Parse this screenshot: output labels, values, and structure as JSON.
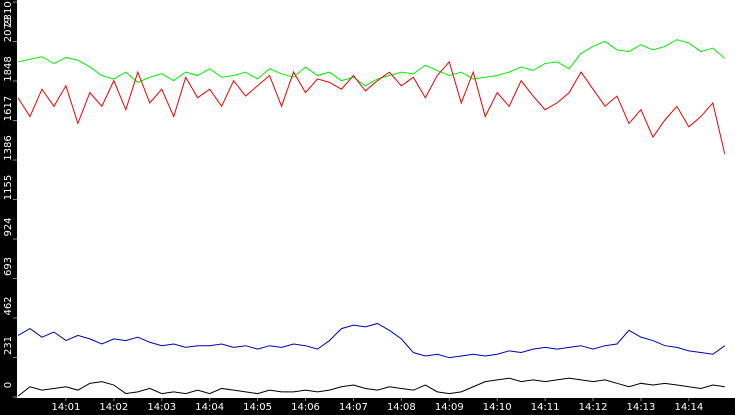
{
  "chart_data": {
    "type": "line",
    "categories": [
      null,
      null,
      null,
      null,
      "14:01",
      null,
      null,
      null,
      "14:02",
      null,
      null,
      null,
      "14:03",
      null,
      null,
      null,
      "14:04",
      null,
      null,
      null,
      "14:05",
      null,
      null,
      null,
      "14:06",
      null,
      null,
      null,
      "14:07",
      null,
      null,
      null,
      "14:08",
      null,
      null,
      null,
      "14:09",
      null,
      null,
      null,
      "14:10",
      null,
      null,
      null,
      "14:11",
      null,
      null,
      null,
      "14:12",
      null,
      null,
      null,
      "14:13",
      null,
      null,
      null,
      "14:14",
      null,
      null,
      null
    ],
    "ylim": [
      0,
      2310
    ],
    "yticks": [
      0,
      231,
      462,
      693,
      924,
      1155,
      1386,
      1617,
      1848,
      2079,
      2310
    ],
    "series": [
      {
        "color": "#00ee00",
        "values": [
          1960,
          1975,
          1990,
          1950,
          1985,
          1970,
          1930,
          1880,
          1860,
          1900,
          1840,
          1870,
          1890,
          1850,
          1900,
          1880,
          1920,
          1870,
          1880,
          1900,
          1860,
          1920,
          1890,
          1870,
          1930,
          1880,
          1900,
          1850,
          1870,
          1820,
          1860,
          1880,
          1900,
          1890,
          1940,
          1910,
          1880,
          1900,
          1860,
          1870,
          1880,
          1900,
          1930,
          1910,
          1950,
          1960,
          1920,
          2010,
          2050,
          2080,
          2030,
          2020,
          2060,
          2030,
          2050,
          2090,
          2070,
          2020,
          2040,
          1980
        ]
      },
      {
        "color": "#ee0000",
        "values": [
          1750,
          1640,
          1800,
          1700,
          1820,
          1600,
          1780,
          1700,
          1850,
          1680,
          1900,
          1720,
          1800,
          1640,
          1870,
          1750,
          1800,
          1700,
          1850,
          1760,
          1820,
          1880,
          1700,
          1900,
          1780,
          1860,
          1840,
          1800,
          1880,
          1790,
          1850,
          1900,
          1820,
          1870,
          1750,
          1880,
          1960,
          1720,
          1900,
          1640,
          1780,
          1700,
          1850,
          1760,
          1680,
          1720,
          1780,
          1900,
          1800,
          1700,
          1760,
          1600,
          1680,
          1520,
          1620,
          1700,
          1580,
          1640,
          1720,
          1420
        ]
      },
      {
        "color": "#0000bb",
        "values": [
          360,
          400,
          350,
          380,
          330,
          360,
          340,
          310,
          340,
          330,
          350,
          320,
          300,
          310,
          290,
          300,
          300,
          310,
          290,
          300,
          280,
          300,
          290,
          310,
          300,
          280,
          330,
          400,
          420,
          410,
          430,
          390,
          340,
          260,
          240,
          250,
          230,
          240,
          250,
          240,
          250,
          270,
          260,
          280,
          290,
          280,
          290,
          300,
          280,
          300,
          310,
          390,
          350,
          330,
          300,
          290,
          270,
          260,
          250,
          300
        ]
      },
      {
        "color": "#000000",
        "values": [
          5,
          60,
          40,
          50,
          60,
          40,
          80,
          90,
          70,
          20,
          30,
          50,
          20,
          30,
          20,
          40,
          20,
          50,
          40,
          30,
          20,
          40,
          30,
          30,
          40,
          30,
          40,
          60,
          70,
          50,
          40,
          60,
          50,
          40,
          70,
          30,
          20,
          30,
          60,
          90,
          100,
          110,
          90,
          100,
          90,
          100,
          110,
          100,
          90,
          100,
          80,
          60,
          80,
          70,
          80,
          70,
          60,
          50,
          70,
          60
        ]
      }
    ]
  }
}
